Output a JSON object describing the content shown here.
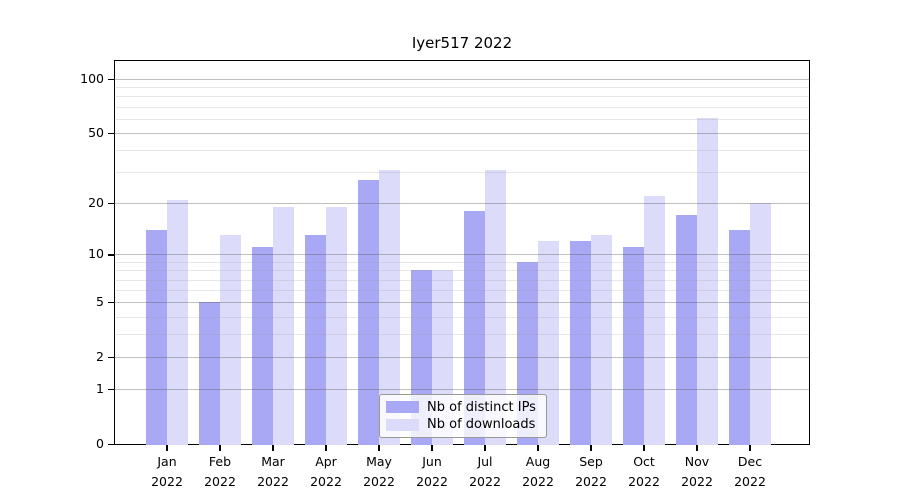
{
  "chart_data": {
    "type": "bar",
    "title": "Iyer517 2022",
    "scale": "log1p",
    "grid": true,
    "year": "2022",
    "months": [
      "Jan",
      "Feb",
      "Mar",
      "Apr",
      "May",
      "Jun",
      "Jul",
      "Aug",
      "Sep",
      "Oct",
      "Nov",
      "Dec"
    ],
    "categories": [
      "Jan 2022",
      "Feb 2022",
      "Mar 2022",
      "Apr 2022",
      "May 2022",
      "Jun 2022",
      "Jul 2022",
      "Aug 2022",
      "Sep 2022",
      "Oct 2022",
      "Nov 2022",
      "Dec 2022"
    ],
    "series": [
      {
        "name": "Nb of distinct IPs",
        "color": "#a8a8f5",
        "values": [
          14,
          5,
          11,
          13,
          27,
          8,
          18,
          9,
          12,
          11,
          17,
          14
        ]
      },
      {
        "name": "Nb of downloads",
        "color": "#dcdcfa",
        "values": [
          21,
          13,
          19,
          19,
          31,
          8,
          31,
          12,
          13,
          22,
          61,
          20
        ]
      }
    ],
    "yticks": [
      0,
      1,
      2,
      5,
      10,
      20,
      50,
      100
    ],
    "minor_gridlines": [
      3,
      4,
      6,
      7,
      8,
      9,
      30,
      40,
      60,
      70,
      80,
      90
    ],
    "ylim": [
      0,
      127
    ],
    "legend_position": "bottom-center"
  }
}
